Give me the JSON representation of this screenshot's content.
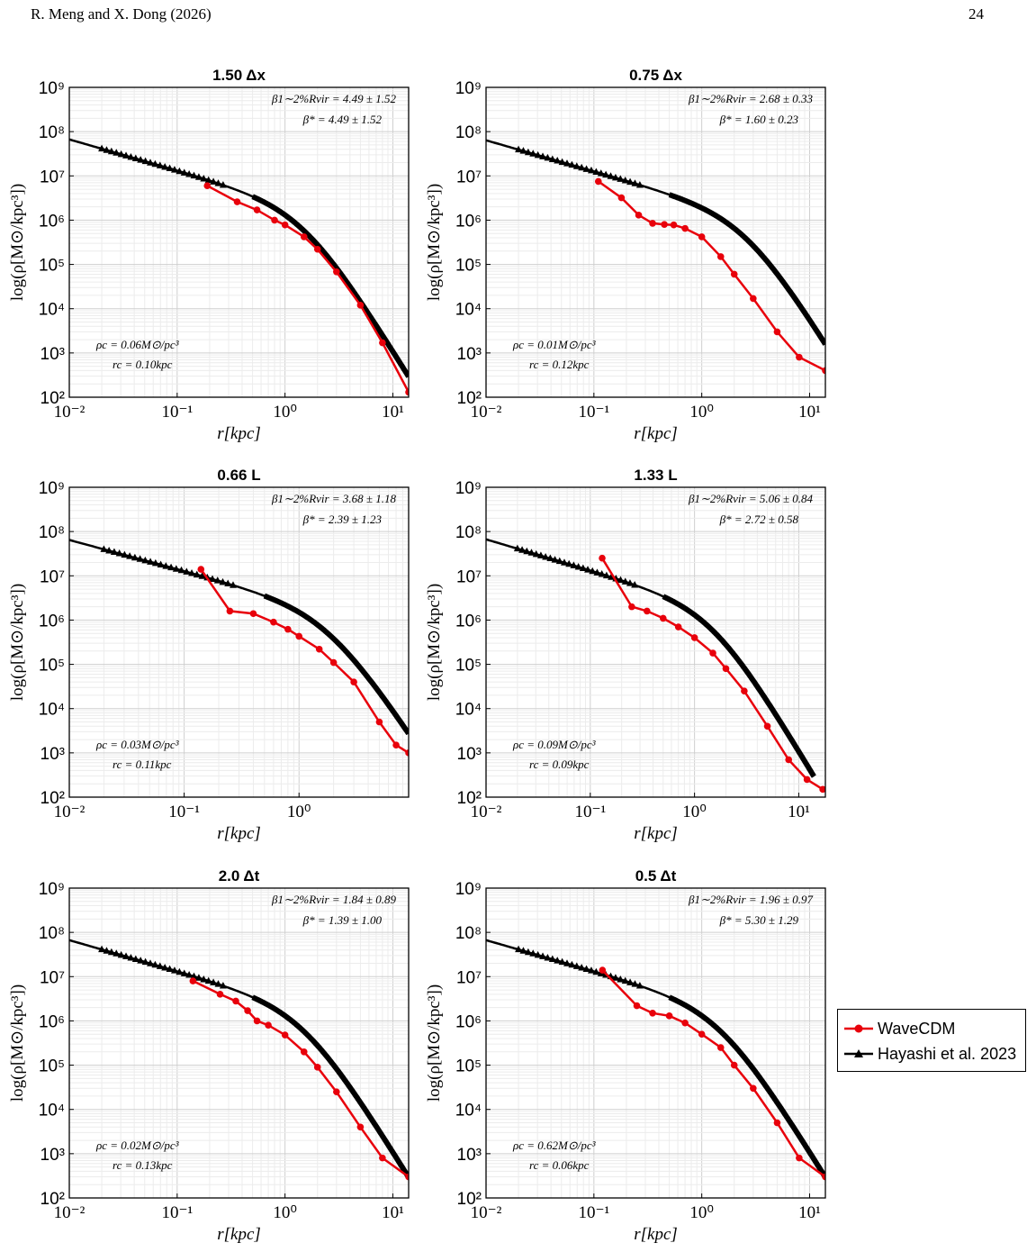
{
  "header": {
    "left": "R. Meng and X. Dong (2026)",
    "right": "24"
  },
  "legend": [
    {
      "name": "WaveCDM",
      "color": "#e8000b",
      "marker": "circle"
    },
    {
      "name": "Hayashi et al. 2023",
      "color": "#000000",
      "marker": "triangle"
    }
  ],
  "colors": {
    "wavecdm": "#e8000b",
    "hayashi": "#000000",
    "grid": "#dddddd"
  },
  "chart_data": [
    {
      "type": "line",
      "title": "1.50 Δx",
      "xlabel": "r[kpc]",
      "ylabel": "log(ρ[M⊙/kpc³])",
      "x_scale": "log",
      "y_scale": "log",
      "xlim": [
        0.01,
        14
      ],
      "ylim": [
        100,
        1000000000
      ],
      "x_ticks": [
        "10⁻²",
        "10⁻¹",
        "10⁰",
        "10¹"
      ],
      "y_ticks": [
        "10²",
        "10³",
        "10⁴",
        "10⁵",
        "10⁶",
        "10⁷",
        "10⁸",
        "10⁹"
      ],
      "grid": true,
      "annotations": {
        "beta1": "β1∼2%Rvir = 4.49 ± 1.52",
        "beta_star": "β* = 4.49 ± 1.52",
        "rho_c": "ρc = 0.06M⊙/pc³",
        "r_c": "rc = 0.10kpc"
      },
      "hayashi": {
        "rho0": 2000000,
        "rs": 1.5,
        "rmax": 14
      },
      "series": [
        {
          "x": [
            0.19,
            0.36,
            0.55,
            0.8,
            1.0,
            1.5,
            2.0,
            3.0,
            5.0,
            8.0,
            14.0
          ],
          "y": [
            6000000,
            2600000,
            1700000,
            1000000,
            780000,
            420000,
            220000,
            68000,
            12000,
            1700,
            130
          ]
        }
      ]
    },
    {
      "type": "line",
      "title": "0.75 Δx",
      "xlabel": "r[kpc]",
      "ylabel": "log(ρ[M⊙/kpc³])",
      "x_scale": "log",
      "y_scale": "log",
      "xlim": [
        0.01,
        14
      ],
      "ylim": [
        100,
        1000000000
      ],
      "x_ticks": [
        "10⁻²",
        "10⁻¹",
        "10⁰",
        "10¹"
      ],
      "y_ticks": [
        "10²",
        "10³",
        "10⁴",
        "10⁵",
        "10⁶",
        "10⁷",
        "10⁸",
        "10⁹"
      ],
      "grid": true,
      "annotations": {
        "beta1": "β1∼2%Rvir = 2.68 ± 0.33",
        "beta_star": "β* = 1.60 ± 0.23",
        "rho_c": "ρc = 0.01M⊙/pc³",
        "r_c": "rc = 0.12kpc"
      },
      "hayashi": {
        "rho0": 1300000,
        "rs": 2.6,
        "rmax": 14
      },
      "series": [
        {
          "x": [
            0.11,
            0.18,
            0.26,
            0.35,
            0.45,
            0.55,
            0.7,
            1.0,
            1.5,
            2.0,
            3.0,
            5.0,
            8.0,
            14.0
          ],
          "y": [
            7500000,
            3200000,
            1300000,
            850000,
            800000,
            780000,
            650000,
            420000,
            150000,
            60000,
            17000,
            3000,
            800,
            400
          ]
        }
      ]
    },
    {
      "type": "line",
      "title": "0.66 L",
      "xlabel": "r[kpc]",
      "ylabel": "log(ρ[M⊙/kpc³])",
      "x_scale": "log",
      "y_scale": "log",
      "xlim": [
        0.01,
        9
      ],
      "ylim": [
        100,
        1000000000
      ],
      "x_ticks": [
        "10⁻²",
        "10⁻¹",
        "10⁰"
      ],
      "y_ticks": [
        "10²",
        "10³",
        "10⁴",
        "10⁵",
        "10⁶",
        "10⁷",
        "10⁸",
        "10⁹"
      ],
      "grid": true,
      "annotations": {
        "beta1": "β1∼2%Rvir = 3.68 ± 1.18",
        "beta_star": "β* = 2.39 ± 1.23",
        "rho_c": "ρc = 0.03M⊙/pc³",
        "r_c": "rc = 0.11kpc"
      },
      "hayashi": {
        "rho0": 1700000,
        "rs": 1.8,
        "rmax": 9
      },
      "series": [
        {
          "x": [
            0.14,
            0.25,
            0.4,
            0.6,
            0.8,
            1.0,
            1.5,
            2.0,
            3.0,
            5.0,
            7.0,
            9.0
          ],
          "y": [
            14000000,
            1600000,
            1400000,
            900000,
            620000,
            430000,
            220000,
            110000,
            40000,
            5000,
            1500,
            1000
          ]
        }
      ]
    },
    {
      "type": "line",
      "title": "1.33 L",
      "xlabel": "r[kpc]",
      "ylabel": "log(ρ[M⊙/kpc³])",
      "x_scale": "log",
      "y_scale": "log",
      "xlim": [
        0.01,
        18
      ],
      "ylim": [
        100,
        1000000000
      ],
      "x_ticks": [
        "10⁻²",
        "10⁻¹",
        "10⁰",
        "10¹"
      ],
      "y_ticks": [
        "10²",
        "10³",
        "10⁴",
        "10⁵",
        "10⁶",
        "10⁷",
        "10⁸",
        "10⁹"
      ],
      "grid": true,
      "annotations": {
        "beta1": "β1∼2%Rvir = 5.06 ± 0.84",
        "beta_star": "β* = 2.72 ± 0.58",
        "rho_c": "ρc = 0.09M⊙/pc³",
        "r_c": "rc = 0.09kpc"
      },
      "hayashi": {
        "rho0": 2000000,
        "rs": 1.5,
        "rmax": 14
      },
      "series": [
        {
          "x": [
            0.13,
            0.25,
            0.35,
            0.5,
            0.7,
            1.0,
            1.5,
            2.0,
            3.0,
            5.0,
            8.0,
            12.0,
            17.0
          ],
          "y": [
            25000000,
            2000000,
            1600000,
            1100000,
            700000,
            400000,
            180000,
            80000,
            25000,
            4000,
            700,
            250,
            150
          ]
        }
      ]
    },
    {
      "type": "line",
      "title": "2.0 Δt",
      "xlabel": "r[kpc]",
      "ylabel": "log(ρ[M⊙/kpc³])",
      "x_scale": "log",
      "y_scale": "log",
      "xlim": [
        0.01,
        14
      ],
      "ylim": [
        100,
        1000000000
      ],
      "x_ticks": [
        "10⁻²",
        "10⁻¹",
        "10⁰",
        "10¹"
      ],
      "y_ticks": [
        "10²",
        "10³",
        "10⁴",
        "10⁵",
        "10⁶",
        "10⁷",
        "10⁸",
        "10⁹"
      ],
      "grid": true,
      "annotations": {
        "beta1": "β1∼2%Rvir = 1.84 ± 0.89",
        "beta_star": "β* = 1.39 ± 1.00",
        "rho_c": "ρc = 0.02M⊙/pc³",
        "r_c": "rc = 0.13kpc"
      },
      "hayashi": {
        "rho0": 2000000,
        "rs": 1.5,
        "rmax": 14
      },
      "series": [
        {
          "x": [
            0.14,
            0.25,
            0.35,
            0.45,
            0.55,
            0.7,
            1.0,
            1.5,
            2.0,
            3.0,
            5.0,
            8.0,
            14.0
          ],
          "y": [
            8000000,
            4000000,
            2800000,
            1700000,
            1000000,
            800000,
            480000,
            200000,
            90000,
            25000,
            4000,
            800,
            300
          ]
        }
      ]
    },
    {
      "type": "line",
      "title": "0.5 Δt",
      "xlabel": "r[kpc]",
      "ylabel": "log(ρ[M⊙/kpc³])",
      "x_scale": "log",
      "y_scale": "log",
      "xlim": [
        0.01,
        14
      ],
      "ylim": [
        100,
        1000000000
      ],
      "x_ticks": [
        "10⁻²",
        "10⁻¹",
        "10⁰",
        "10¹"
      ],
      "y_ticks": [
        "10²",
        "10³",
        "10⁴",
        "10⁵",
        "10⁶",
        "10⁷",
        "10⁸",
        "10⁹"
      ],
      "grid": true,
      "annotations": {
        "beta1": "β1∼2%Rvir = 1.96 ± 0.97",
        "beta_star": "β* = 5.30 ± 1.29",
        "rho_c": "ρc = 0.62M⊙/pc³",
        "r_c": "rc = 0.06kpc"
      },
      "hayashi": {
        "rho0": 2000000,
        "rs": 1.5,
        "rmax": 14
      },
      "series": [
        {
          "x": [
            0.12,
            0.25,
            0.35,
            0.5,
            0.7,
            1.0,
            1.5,
            2.0,
            3.0,
            5.0,
            8.0,
            14.0
          ],
          "y": [
            14000000,
            2200000,
            1500000,
            1300000,
            900000,
            500000,
            250000,
            100000,
            30000,
            5000,
            800,
            300
          ]
        }
      ]
    }
  ]
}
